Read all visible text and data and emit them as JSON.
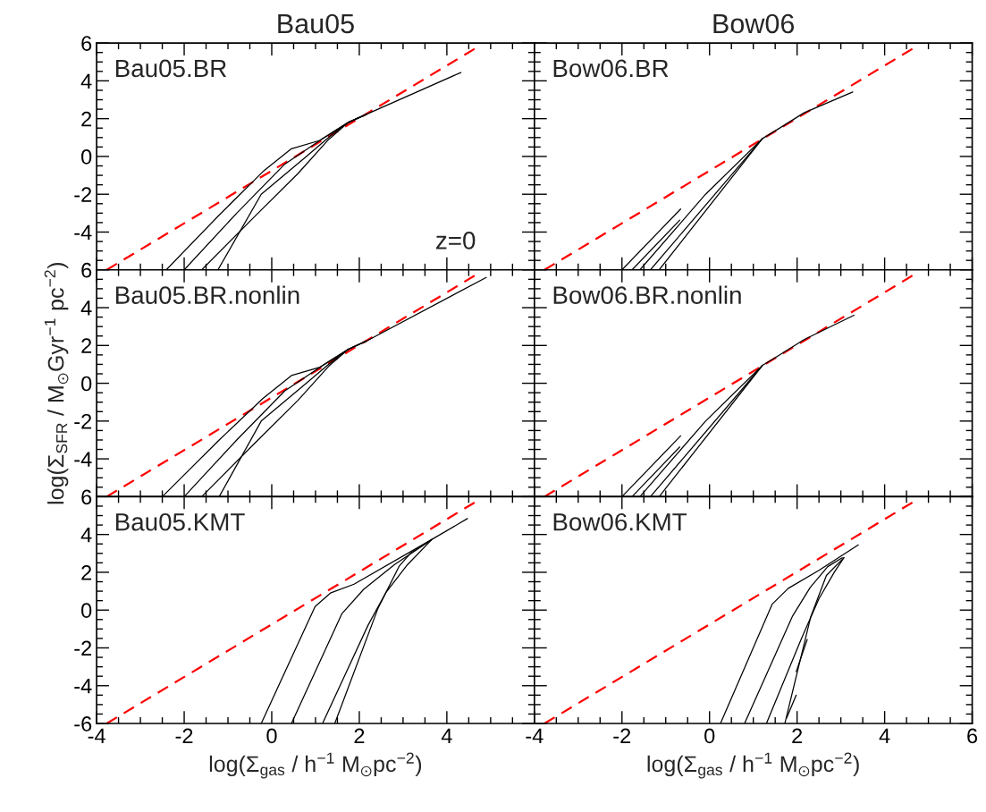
{
  "chart_data": [
    {
      "type": "line",
      "title": "Bau05",
      "annotations": [
        "Bau05.BR",
        "z=0"
      ],
      "xlim": [
        -4,
        6
      ],
      "ylim": [
        -6,
        6
      ],
      "xticks": [
        -4,
        -2,
        0,
        2,
        4
      ],
      "yticks": [
        -4,
        -2,
        0,
        2,
        4,
        6
      ],
      "tick_labels": "y",
      "grid": false,
      "series": [
        {
          "color": "#ff0000",
          "line_style": "dashed",
          "x": [
            -3.77,
            4.69
          ],
          "values": [
            -6,
            5.77
          ]
        },
        {
          "color": "#000000",
          "x": [
            -2.41,
            -1.2,
            -0.2,
            0.45,
            1.1,
            1.75,
            2.16,
            4.32
          ],
          "values": [
            -6,
            -3.1,
            -0.8,
            0.41,
            0.85,
            1.8,
            2.23,
            4.44
          ]
        },
        {
          "color": "#000000",
          "x": [
            -2.0,
            -0.8,
            0.3,
            1.2,
            1.75,
            2.16
          ],
          "values": [
            -6,
            -3.0,
            -0.4,
            1.0,
            1.8,
            2.23
          ]
        },
        {
          "color": "#000000",
          "x": [
            -1.6,
            -0.4,
            0.6,
            1.3,
            1.75,
            2.16
          ],
          "values": [
            -6,
            -3.2,
            -0.9,
            0.9,
            1.8,
            2.23
          ]
        },
        {
          "color": "#000000",
          "x": [
            -1.23,
            -0.24,
            0.79,
            1.4,
            1.75,
            2.16
          ],
          "values": [
            -6,
            -2,
            0,
            1.2,
            1.8,
            2.23
          ]
        }
      ]
    },
    {
      "type": "line",
      "title": "Bow06",
      "annotations": [
        "Bow06.BR"
      ],
      "xlim": [
        -4,
        6
      ],
      "ylim": [
        -6,
        6
      ],
      "xticks": [
        -4,
        -2,
        0,
        2,
        4,
        6
      ],
      "yticks": [
        -6,
        -4,
        -2,
        0,
        2,
        4,
        6
      ],
      "tick_labels": false,
      "grid": false,
      "series": [
        {
          "color": "#ff0000",
          "line_style": "dashed",
          "x": [
            -3.77,
            4.69
          ],
          "values": [
            -6,
            5.77
          ]
        },
        {
          "color": "#000000",
          "x": [
            -1.15,
            1.21,
            1.54,
            2.16,
            3.27
          ],
          "values": [
            -6,
            0.95,
            1.41,
            2.31,
            3.41
          ]
        },
        {
          "color": "#000000",
          "x": [
            -1.59,
            -0.09,
            1.21
          ],
          "values": [
            -6,
            -2.0,
            0.95
          ]
        },
        {
          "color": "#000000",
          "x": [
            -1.35,
            1.21
          ],
          "values": [
            -6,
            0.95
          ]
        },
        {
          "color": "#000000",
          "x": [
            -2.0,
            -0.66
          ],
          "values": [
            -6,
            -2.78
          ]
        },
        {
          "color": "#000000",
          "x": [
            -1.77,
            -0.68
          ],
          "values": [
            -6,
            -3.37
          ]
        }
      ]
    },
    {
      "type": "line",
      "ylabel": "log(Σ$_{SFR}$ / M$_{⊙}$Gyr$^{−1}$ pc$^{−2}$)",
      "annotations": [
        "Bau05.BR.nonlin"
      ],
      "xlim": [
        -4,
        6
      ],
      "ylim": [
        -6,
        6
      ],
      "xticks": [
        -4,
        -2,
        0,
        2,
        4
      ],
      "yticks": [
        -4,
        -2,
        0,
        2,
        4,
        6
      ],
      "tick_labels": "y",
      "grid": false,
      "series": [
        {
          "color": "#ff0000",
          "line_style": "dashed",
          "x": [
            -3.77,
            4.69
          ],
          "values": [
            -6,
            5.77
          ]
        },
        {
          "color": "#000000",
          "x": [
            -2.5,
            -1.2,
            -0.2,
            0.45,
            1.1,
            1.75,
            2.16,
            4.9
          ],
          "values": [
            -6,
            -3.0,
            -0.8,
            0.41,
            0.85,
            1.8,
            2.23,
            5.6
          ]
        },
        {
          "color": "#000000",
          "x": [
            -2.0,
            -0.8,
            0.3,
            1.2,
            1.75,
            2.16
          ],
          "values": [
            -6,
            -3.0,
            -0.4,
            1.0,
            1.8,
            2.23
          ]
        },
        {
          "color": "#000000",
          "x": [
            -1.6,
            -0.4,
            0.6,
            1.3,
            1.75,
            2.16
          ],
          "values": [
            -6,
            -3.2,
            -0.9,
            0.9,
            1.8,
            2.23
          ]
        },
        {
          "color": "#000000",
          "x": [
            -1.2,
            -0.24,
            0.79,
            1.4,
            1.75,
            2.16
          ],
          "values": [
            -6,
            -2,
            0,
            1.2,
            1.8,
            2.23
          ]
        }
      ]
    },
    {
      "type": "line",
      "annotations": [
        "Bow06.BR.nonlin"
      ],
      "xlim": [
        -4,
        6
      ],
      "ylim": [
        -6,
        6
      ],
      "xticks": [
        -4,
        -2,
        0,
        2,
        4,
        6
      ],
      "yticks": [
        -6,
        -4,
        -2,
        0,
        2,
        4,
        6
      ],
      "tick_labels": false,
      "grid": false,
      "series": [
        {
          "color": "#ff0000",
          "line_style": "dashed",
          "x": [
            -3.77,
            4.69
          ],
          "values": [
            -6,
            5.77
          ]
        },
        {
          "color": "#000000",
          "x": [
            -1.15,
            1.21,
            1.54,
            2.16,
            3.3
          ],
          "values": [
            -6,
            0.95,
            1.41,
            2.31,
            3.6
          ]
        },
        {
          "color": "#000000",
          "x": [
            -1.59,
            -0.09,
            1.21
          ],
          "values": [
            -6,
            -2.0,
            0.95
          ]
        },
        {
          "color": "#000000",
          "x": [
            -1.35,
            1.21
          ],
          "values": [
            -6,
            0.95
          ]
        },
        {
          "color": "#000000",
          "x": [
            -2.0,
            -0.66
          ],
          "values": [
            -6,
            -2.78
          ]
        },
        {
          "color": "#000000",
          "x": [
            -1.77,
            -0.68
          ],
          "values": [
            -6,
            -3.37
          ]
        }
      ]
    },
    {
      "type": "line",
      "xlabel": "log(Σ$_{gas}$ / h$^{−1}$ M$_{⊙}$pc$^{−2}$)",
      "annotations": [
        "Bau05.KMT"
      ],
      "xlim": [
        -4,
        6
      ],
      "ylim": [
        -6,
        6
      ],
      "xticks": [
        -4,
        -2,
        0,
        2,
        4
      ],
      "yticks": [
        -6,
        -4,
        -2,
        0,
        2,
        4,
        6
      ],
      "grid": false,
      "series": [
        {
          "color": "#ff0000",
          "line_style": "dashed",
          "x": [
            -3.77,
            4.69
          ],
          "values": [
            -6,
            5.77
          ]
        },
        {
          "color": "#000000",
          "x": [
            -0.24,
            0.99,
            1.34,
            1.88,
            3.66,
            4.47
          ],
          "values": [
            -6,
            0.19,
            0.9,
            1.37,
            3.74,
            4.84
          ]
        },
        {
          "color": "#000000",
          "x": [
            0.45,
            1.6,
            2.1,
            2.8,
            3.66
          ],
          "values": [
            -6,
            -0.2,
            1.1,
            2.4,
            3.74
          ]
        },
        {
          "color": "#000000",
          "x": [
            1.16,
            2.2,
            2.6,
            3.1,
            3.66
          ],
          "values": [
            -6,
            -0.8,
            0.9,
            2.4,
            3.74
          ]
        },
        {
          "color": "#000000",
          "x": [
            1.44,
            2.43,
            2.91,
            3.18,
            3.66
          ],
          "values": [
            -6,
            0.11,
            2.32,
            3.03,
            3.74
          ]
        }
      ]
    },
    {
      "type": "line",
      "xlabel": "log(Σ$_{gas}$ / h$^{−1}$ M$_{⊙}$pc$^{−2}$)",
      "annotations": [
        "Bow06.KMT"
      ],
      "xlim": [
        -4,
        6
      ],
      "ylim": [
        -6,
        6
      ],
      "xticks": [
        -4,
        -2,
        0,
        2,
        4,
        6
      ],
      "yticks": [
        -6,
        -4,
        -2,
        0,
        2,
        4,
        6
      ],
      "tick_labels": "x",
      "grid": false,
      "series": [
        {
          "color": "#ff0000",
          "line_style": "dashed",
          "x": [
            -3.77,
            4.69
          ],
          "values": [
            -6,
            5.77
          ]
        },
        {
          "color": "#000000",
          "x": [
            0.25,
            1.43,
            1.8,
            2.5,
            3.4
          ],
          "values": [
            -6,
            0.31,
            1.15,
            2.1,
            3.45
          ]
        },
        {
          "color": "#000000",
          "x": [
            0.8,
            1.9,
            2.3,
            2.7,
            3.03
          ],
          "values": [
            -6,
            -0.3,
            1.2,
            2.3,
            2.77
          ]
        },
        {
          "color": "#000000",
          "x": [
            1.3,
            2.1,
            2.5,
            2.85,
            3.07
          ],
          "values": [
            -6,
            -1.5,
            0.6,
            2.0,
            2.77
          ]
        },
        {
          "color": "#000000",
          "x": [
            1.72,
            2.31,
            2.67,
            3.07
          ],
          "values": [
            -6,
            -0.37,
            1.83,
            2.77
          ]
        },
        {
          "color": "#000000",
          "x": [
            1.98,
            2.23
          ],
          "values": [
            -3.26,
            -1.56
          ]
        },
        {
          "color": "#000000",
          "x": [
            1.76,
            1.98
          ],
          "values": [
            -5.72,
            -4.5
          ]
        }
      ]
    }
  ]
}
